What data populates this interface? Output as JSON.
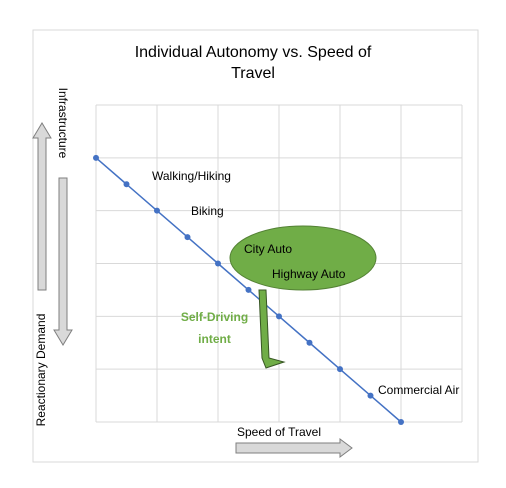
{
  "chart_data": {
    "type": "line",
    "title": "Individual Autonomy vs. Speed of Travel",
    "x_label": "Speed of Travel",
    "y_label_top": "Infrastructure",
    "y_label_bottom": "Reactionary Demand",
    "x": [
      0,
      1,
      2,
      3,
      4,
      5,
      6,
      7,
      8,
      9,
      10
    ],
    "series": [
      {
        "color": "#4472c4",
        "values": [
          10,
          9,
          8,
          7,
          6,
          5,
          4,
          3,
          2,
          1,
          0
        ]
      }
    ],
    "xlim": [
      0,
      12
    ],
    "ylim": [
      0,
      12
    ],
    "x_grid": [
      0,
      2,
      4,
      6,
      8,
      10,
      12
    ],
    "y_grid": [
      0,
      2,
      4,
      6,
      8,
      10,
      12
    ],
    "grid": true,
    "annotations": [
      {
        "text": "Walking/Hiking"
      },
      {
        "text": "Biking"
      },
      {
        "text": "City Auto"
      },
      {
        "text": "Highway Auto"
      },
      {
        "text": "Self-Driving intent",
        "color": "#70ad47",
        "bold": true
      },
      {
        "text": "Commercial Air"
      }
    ]
  }
}
